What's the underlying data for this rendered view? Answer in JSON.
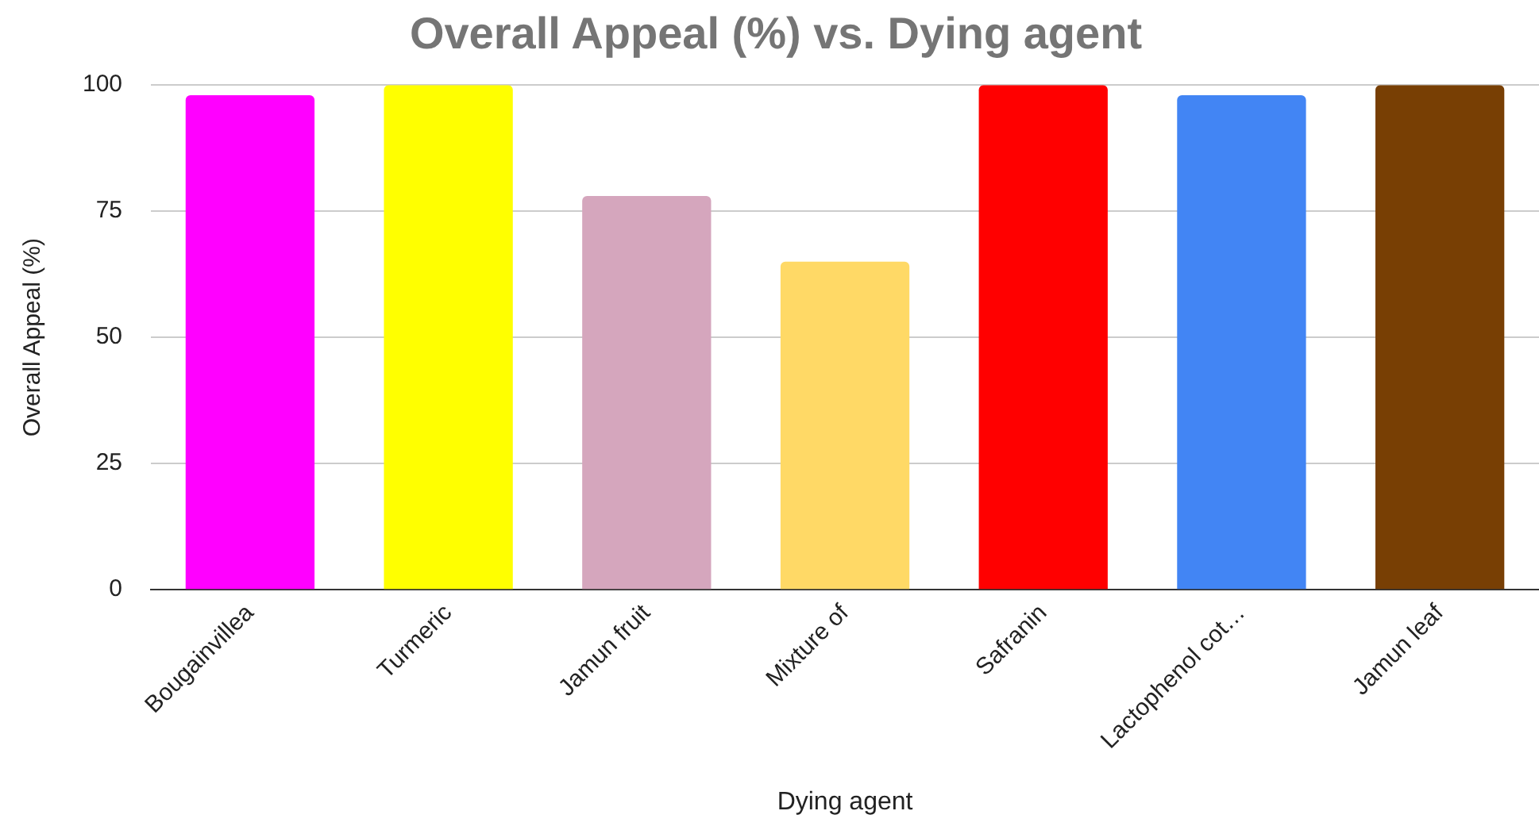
{
  "chart_data": {
    "type": "bar",
    "title": "Overall Appeal (%) vs. Dying agent",
    "xlabel": "Dying agent",
    "ylabel": "Overall Appeal (%)",
    "categories": [
      "Bougainvillea",
      "Turmeric",
      "Jamun fruit",
      "Mixture of",
      "Safranin",
      "Lactophenol cot…",
      "Jamun leaf"
    ],
    "values": [
      98,
      100,
      78,
      65,
      100,
      98,
      100
    ],
    "colors": [
      "#ff00ff",
      "#ffff00",
      "#d5a6bd",
      "#ffd966",
      "#ff0000",
      "#4285f4",
      "#783f04"
    ],
    "ylim": [
      0,
      100
    ],
    "yticks": [
      0,
      25,
      50,
      75,
      100
    ],
    "grid": "y"
  }
}
